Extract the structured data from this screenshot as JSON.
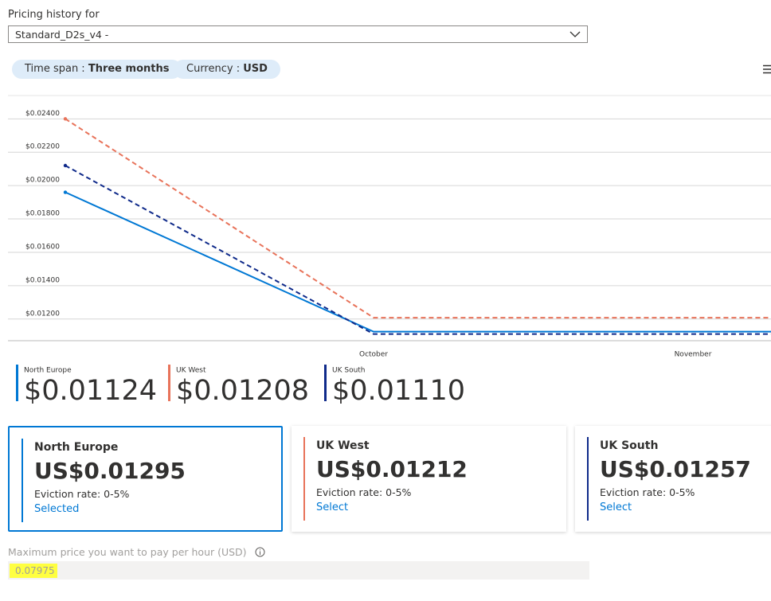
{
  "header": {
    "title": "Pricing history for",
    "dropdown": "Standard_D2s_v4 -"
  },
  "filters": [
    {
      "label": "Time span : ",
      "value": "Three months"
    },
    {
      "label": "Currency : ",
      "value": "USD"
    }
  ],
  "chart_data": {
    "type": "line",
    "categories": [
      null,
      "October",
      "November",
      null
    ],
    "ylim": [
      0.0107,
      0.0254
    ],
    "yticks": [
      {
        "value": 0.012,
        "label": "$0.01200"
      },
      {
        "value": 0.014,
        "label": "$0.01400"
      },
      {
        "value": 0.016,
        "label": "$0.01600"
      },
      {
        "value": 0.018,
        "label": "$0.01800"
      },
      {
        "value": 0.02,
        "label": "$0.02000"
      },
      {
        "value": 0.022,
        "label": "$0.02200"
      },
      {
        "value": 0.024,
        "label": "$0.02400"
      }
    ],
    "grid": true,
    "series": [
      {
        "name": "North Europe",
        "color": "#0078d4",
        "dash": false,
        "values": [
          0.0196,
          0.01124,
          0.01124,
          0.01124
        ],
        "value_labels": [
          null,
          null,
          null,
          "$0.01124"
        ]
      },
      {
        "name": "UK West",
        "color": "#e8735a",
        "dash": true,
        "values": [
          0.024,
          0.01208,
          0.01208,
          0.01208
        ],
        "value_labels": [
          null,
          null,
          null,
          "$0.01208"
        ]
      },
      {
        "name": "UK South",
        "color": "#0f2a8a",
        "dash": true,
        "values": [
          0.0212,
          0.0111,
          0.0111,
          0.0111
        ],
        "value_labels": [
          null,
          null,
          null,
          "$0.01110"
        ]
      }
    ]
  },
  "cards": [
    {
      "region": "North Europe",
      "price": "US$0.01295",
      "eviction": "Eviction rate: 0-5%",
      "action": "Selected",
      "color": "#0078d4",
      "selected": true
    },
    {
      "region": "UK West",
      "price": "US$0.01212",
      "eviction": "Eviction rate: 0-5%",
      "action": "Select",
      "color": "#e8735a",
      "selected": false
    },
    {
      "region": "UK South",
      "price": "US$0.01257",
      "eviction": "Eviction rate: 0-5%",
      "action": "Select",
      "color": "#0f2a8a",
      "selected": false
    }
  ],
  "max_price": {
    "label": "Maximum price you want to pay per hour (USD)",
    "value": "0.07975"
  }
}
